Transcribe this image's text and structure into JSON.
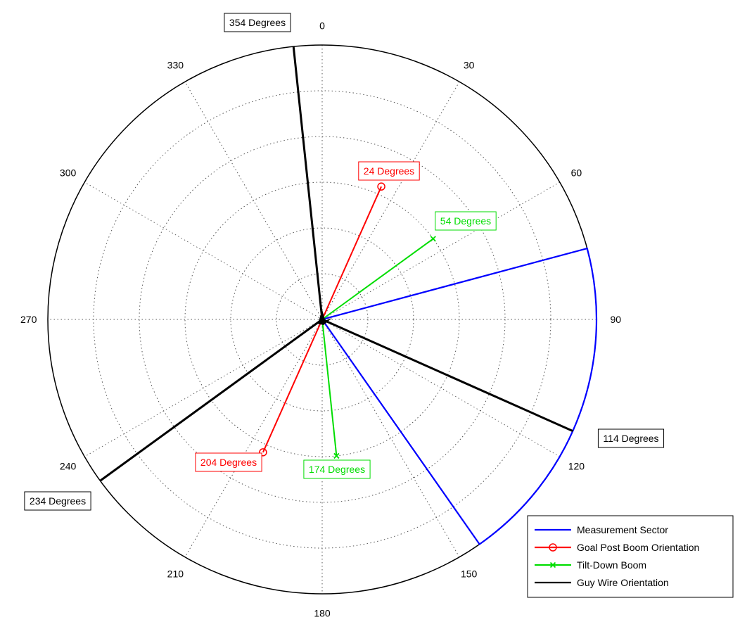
{
  "chart_data": {
    "type": "polar",
    "theta_ticks": [
      "0",
      "30",
      "60",
      "90",
      "120",
      "150",
      "180",
      "210",
      "240",
      "270",
      "300",
      "330"
    ],
    "radial_gridlines": 6,
    "grid": true,
    "theta_zero": "top",
    "theta_direction": "clockwise",
    "series": [
      {
        "name": "Measurement Sector",
        "color": "#0000ff",
        "marker": "none",
        "kind": "sector",
        "theta_start": 75,
        "theta_end": 145,
        "r": 1.0
      },
      {
        "name": "Goal Post Boom Orientation",
        "color": "#ff0000",
        "marker": "circle",
        "kind": "rays",
        "rays": [
          {
            "theta": 24,
            "r": 0.53
          },
          {
            "theta": 204,
            "r": 0.53
          }
        ]
      },
      {
        "name": "Tilt-Down Boom",
        "color": "#00dd00",
        "marker": "x",
        "kind": "rays",
        "rays": [
          {
            "theta": 54,
            "r": 0.5
          },
          {
            "theta": 174,
            "r": 0.5
          }
        ]
      },
      {
        "name": "Guy Wire Orientation",
        "color": "#000000",
        "marker": "none",
        "kind": "rays",
        "rays": [
          {
            "theta": 354,
            "r": 1.0
          },
          {
            "theta": 114,
            "r": 1.0
          },
          {
            "theta": 234,
            "r": 1.0
          }
        ]
      }
    ],
    "annotations": [
      {
        "text": "354 Degrees",
        "color": "#000000"
      },
      {
        "text": "24 Degrees",
        "color": "#ff0000"
      },
      {
        "text": "54 Degrees",
        "color": "#00dd00"
      },
      {
        "text": "114 Degrees",
        "color": "#000000"
      },
      {
        "text": "174 Degrees",
        "color": "#00dd00"
      },
      {
        "text": "204 Degrees",
        "color": "#ff0000"
      },
      {
        "text": "234 Degrees",
        "color": "#000000"
      }
    ],
    "legend_position": "bottom-right"
  }
}
